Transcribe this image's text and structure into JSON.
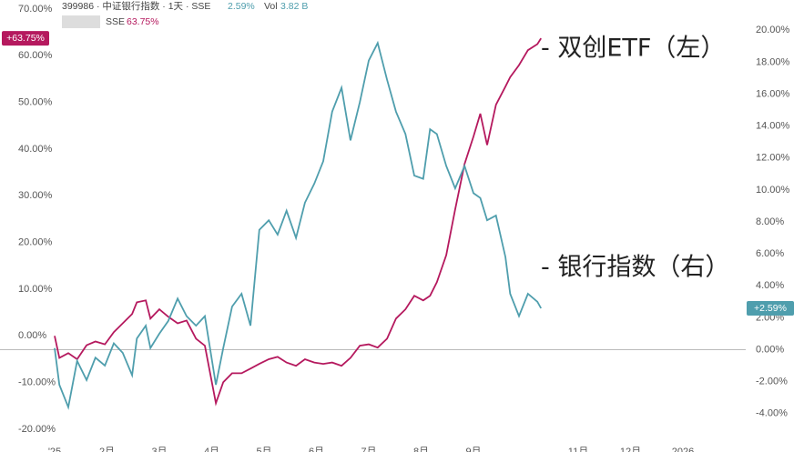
{
  "chart_data": {
    "type": "line",
    "header": {
      "line1": "399986 · 中证银行指数 · 1天 · SSE",
      "line1_change": "2.59%",
      "vol_label": "Vol",
      "vol_value": "3.82 B",
      "line2": "SSE",
      "line2_change": "63.75%"
    },
    "x": [
      0,
      0.09,
      0.26,
      0.43,
      0.61,
      0.78,
      0.96,
      1.13,
      1.3,
      1.48,
      1.57,
      1.74,
      1.83,
      2.0,
      2.17,
      2.35,
      2.52,
      2.7,
      2.87,
      3.08,
      3.22,
      3.39,
      3.57,
      3.74,
      3.91,
      4.09,
      4.26,
      4.43,
      4.61,
      4.78,
      4.96,
      5.13,
      5.3,
      5.48,
      5.65,
      5.83,
      6.0,
      6.17,
      6.35,
      6.52,
      6.7,
      6.87,
      7.04,
      7.17,
      7.3,
      7.48,
      7.65,
      7.83,
      8.0,
      8.13,
      8.26,
      8.43,
      8.61,
      8.7,
      8.87,
      9.04,
      9.22,
      9.29
    ],
    "xlim": [
      0,
      13.2
    ],
    "xticks": [
      {
        "value": 0,
        "label": "'25"
      },
      {
        "value": 1,
        "label": "2月"
      },
      {
        "value": 2,
        "label": "3月"
      },
      {
        "value": 3,
        "label": "4月"
      },
      {
        "value": 4,
        "label": "5月"
      },
      {
        "value": 5,
        "label": "6月"
      },
      {
        "value": 6,
        "label": "7月"
      },
      {
        "value": 7,
        "label": "8月"
      },
      {
        "value": 8,
        "label": "9月"
      },
      {
        "value": 10,
        "label": "11月"
      },
      {
        "value": 11,
        "label": "12月"
      },
      {
        "value": 12,
        "label": "2026"
      }
    ],
    "ylim": [
      -20,
      70
    ],
    "yticks": [
      {
        "value": -20,
        "label": "-20.00%"
      },
      {
        "value": -10,
        "label": "-10.00%"
      },
      {
        "value": 0,
        "label": "0.00%"
      },
      {
        "value": 10,
        "label": "10.00%"
      },
      {
        "value": 20,
        "label": "20.00%"
      },
      {
        "value": 30,
        "label": "30.00%"
      },
      {
        "value": 40,
        "label": "40.00%"
      },
      {
        "value": 50,
        "label": "50.00%"
      },
      {
        "value": 60,
        "label": "60.00%"
      },
      {
        "value": 70,
        "label": "70.00%"
      }
    ],
    "y2lim": [
      -4.3,
      20.3
    ],
    "y2ticks": [
      {
        "value": -4,
        "label": "-4.00%"
      },
      {
        "value": -2,
        "label": "-2.00%"
      },
      {
        "value": 0,
        "label": "0.00%"
      },
      {
        "value": 2,
        "label": "2.00%"
      },
      {
        "value": 4,
        "label": "4.00%"
      },
      {
        "value": 6,
        "label": "6.00%"
      },
      {
        "value": 8,
        "label": "8.00%"
      },
      {
        "value": 10,
        "label": "10.00%"
      },
      {
        "value": 12,
        "label": "12.00%"
      },
      {
        "value": 14,
        "label": "14.00%"
      },
      {
        "value": 16,
        "label": "16.00%"
      },
      {
        "value": 18,
        "label": "18.00%"
      },
      {
        "value": 20,
        "label": "20.00%"
      }
    ],
    "grid": false,
    "series": [
      {
        "name": "- 双创ETF（左）",
        "color": "#b5195e",
        "axis": "y",
        "end_label": "+63.75%",
        "values": [
          0,
          -4.7,
          -3.7,
          -5,
          -2,
          -1.2,
          -1.8,
          0.8,
          2.7,
          4.7,
          7.2,
          7.6,
          3.7,
          5.7,
          4.1,
          2.7,
          3.3,
          -0.6,
          -2.1,
          -14.4,
          -9.9,
          -8,
          -8,
          -7,
          -6,
          -5,
          -4.5,
          -5.7,
          -6.4,
          -5,
          -5.7,
          -6,
          -5.7,
          -6.4,
          -4.7,
          -2.1,
          -1.8,
          -2.5,
          -0.6,
          3.7,
          5.7,
          8.6,
          7.6,
          8.6,
          11.5,
          17.3,
          27.1,
          36.8,
          42.7,
          47.6,
          40.9,
          49.5,
          53.4,
          55.4,
          58,
          61.2,
          62.5,
          63.75
        ]
      },
      {
        "name": "- 银行指数（右）",
        "color": "#4f9ead",
        "axis": "y2",
        "end_label": "+2.59%",
        "values": [
          0.1,
          -2.2,
          -3.6,
          -0.7,
          -1.9,
          -0.5,
          -1.0,
          0.4,
          -0.2,
          -1.6,
          0.7,
          1.5,
          0.1,
          1.0,
          1.8,
          3.2,
          2.1,
          1.5,
          2.1,
          -2.2,
          0.1,
          2.7,
          3.5,
          1.5,
          7.5,
          8.1,
          7.2,
          8.7,
          7.0,
          9.2,
          10.4,
          11.8,
          14.9,
          16.4,
          13.1,
          15.5,
          18.1,
          19.2,
          16.9,
          14.9,
          13.5,
          10.9,
          10.7,
          13.8,
          13.5,
          11.5,
          10.1,
          11.5,
          9.8,
          9.5,
          8.1,
          8.4,
          5.8,
          3.5,
          2.1,
          3.5,
          3.0,
          2.59
        ]
      }
    ]
  }
}
